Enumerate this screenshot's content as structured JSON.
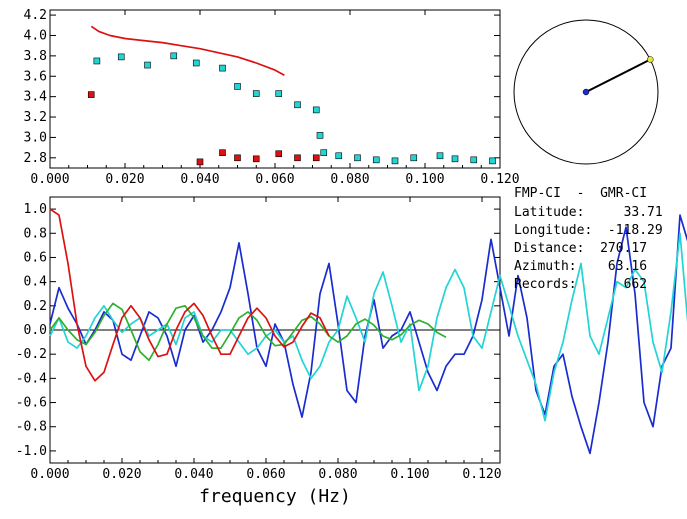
{
  "chart_data": [
    {
      "type": "scatter",
      "panel": "top",
      "xlim": [
        0.0,
        0.12
      ],
      "ylim": [
        2.7,
        4.25
      ],
      "x_ticks": [
        "0.000",
        "0.020",
        "0.040",
        "0.060",
        "0.080",
        "0.100",
        "0.120"
      ],
      "y_ticks": [
        "2.8",
        "3.0",
        "3.2",
        "3.4",
        "3.6",
        "3.8",
        "4.0",
        "4.2"
      ],
      "grid": false,
      "series": [
        {
          "color": "#dd1111",
          "kind": "line",
          "points": [
            [
              0.011,
              4.09
            ],
            [
              0.013,
              4.04
            ],
            [
              0.016,
              4.0
            ],
            [
              0.02,
              3.97
            ],
            [
              0.025,
              3.95
            ],
            [
              0.03,
              3.93
            ],
            [
              0.035,
              3.9
            ],
            [
              0.04,
              3.87
            ],
            [
              0.045,
              3.83
            ],
            [
              0.05,
              3.79
            ],
            [
              0.055,
              3.73
            ],
            [
              0.06,
              3.66
            ],
            [
              0.0625,
              3.61
            ]
          ]
        },
        {
          "color": "#22d4d4",
          "kind": "markers",
          "points": [
            [
              0.0125,
              3.75
            ],
            [
              0.019,
              3.79
            ],
            [
              0.026,
              3.71
            ],
            [
              0.033,
              3.8
            ],
            [
              0.039,
              3.73
            ],
            [
              0.046,
              3.68
            ],
            [
              0.05,
              3.5
            ],
            [
              0.055,
              3.43
            ],
            [
              0.061,
              3.43
            ],
            [
              0.066,
              3.32
            ],
            [
              0.071,
              3.27
            ],
            [
              0.072,
              3.02
            ],
            [
              0.073,
              2.85
            ],
            [
              0.077,
              2.82
            ],
            [
              0.082,
              2.8
            ],
            [
              0.087,
              2.78
            ],
            [
              0.092,
              2.77
            ],
            [
              0.097,
              2.8
            ],
            [
              0.104,
              2.82
            ],
            [
              0.108,
              2.79
            ],
            [
              0.113,
              2.78
            ],
            [
              0.118,
              2.77
            ]
          ]
        },
        {
          "color": "#dd1111",
          "kind": "markers",
          "points": [
            [
              0.011,
              3.42
            ],
            [
              0.04,
              2.76
            ],
            [
              0.046,
              2.85
            ],
            [
              0.05,
              2.8
            ],
            [
              0.055,
              2.79
            ],
            [
              0.061,
              2.84
            ],
            [
              0.066,
              2.8
            ],
            [
              0.071,
              2.8
            ]
          ]
        }
      ]
    },
    {
      "type": "line",
      "panel": "bottom",
      "xlim": [
        0.0,
        0.125
      ],
      "ylim": [
        -1.1,
        1.1
      ],
      "xlabel": "frequency (Hz)",
      "x_ticks": [
        "0.000",
        "0.020",
        "0.040",
        "0.060",
        "0.080",
        "0.100",
        "0.120"
      ],
      "y_ticks": [
        "1.0",
        "0.8",
        "0.6",
        "0.4",
        "0.2",
        "0.0",
        "-0.2",
        "-0.4",
        "-0.6",
        "-0.8",
        "-1.0"
      ],
      "grid": false,
      "zero_line": true,
      "series": [
        {
          "color": "#1a2ccf",
          "step": 0.0025,
          "values": [
            0.05,
            0.35,
            0.18,
            0.05,
            -0.12,
            0.0,
            0.15,
            0.08,
            -0.2,
            -0.25,
            -0.05,
            0.15,
            0.1,
            -0.05,
            -0.3,
            0.0,
            0.12,
            -0.1,
            0.0,
            0.15,
            0.35,
            0.72,
            0.3,
            -0.15,
            -0.3,
            0.05,
            -0.1,
            -0.45,
            -0.72,
            -0.35,
            0.3,
            0.55,
            0.05,
            -0.5,
            -0.6,
            -0.05,
            0.25,
            -0.15,
            -0.05,
            0.0,
            0.15,
            -0.1,
            -0.35,
            -0.5,
            -0.3,
            -0.2,
            -0.2,
            -0.05,
            0.25,
            0.75,
            0.35,
            -0.05,
            0.45,
            0.1,
            -0.5,
            -0.7,
            -0.3,
            -0.2,
            -0.55,
            -0.8,
            -1.02,
            -0.6,
            -0.1,
            0.55,
            0.85,
            0.3,
            -0.6,
            -0.8,
            -0.3,
            -0.15,
            0.95,
            0.7,
            0.15,
            -0.65,
            -0.95,
            -0.5,
            -0.05,
            0.35,
            0.55,
            0.6
          ]
        },
        {
          "color": "#22d4d4",
          "step": 0.0025,
          "values": [
            -0.05,
            0.1,
            -0.1,
            -0.15,
            -0.05,
            0.1,
            0.2,
            0.08,
            -0.02,
            0.05,
            0.1,
            -0.05,
            0.0,
            0.05,
            -0.12,
            0.1,
            0.15,
            -0.05,
            -0.1,
            0.0,
            0.0,
            -0.1,
            -0.2,
            -0.15,
            -0.05,
            0.0,
            -0.1,
            -0.05,
            -0.25,
            -0.4,
            -0.3,
            -0.1,
            0.0,
            0.28,
            0.1,
            -0.1,
            0.3,
            0.48,
            0.2,
            -0.1,
            0.05,
            -0.5,
            -0.3,
            0.1,
            0.35,
            0.5,
            0.35,
            -0.05,
            -0.15,
            0.15,
            0.45,
            0.2,
            -0.05,
            -0.25,
            -0.45,
            -0.75,
            -0.35,
            -0.1,
            0.25,
            0.55,
            -0.05,
            -0.2,
            0.1,
            0.4,
            0.35,
            0.5,
            0.4,
            -0.1,
            -0.35,
            0.15,
            0.8,
            -0.05
          ]
        },
        {
          "color": "#2fb02f",
          "step": 0.0025,
          "values": [
            0.0,
            0.1,
            0.0,
            -0.08,
            -0.12,
            -0.02,
            0.12,
            0.22,
            0.17,
            0.0,
            -0.18,
            -0.25,
            -0.12,
            0.05,
            0.18,
            0.2,
            0.1,
            -0.05,
            -0.15,
            -0.15,
            -0.03,
            0.1,
            0.15,
            0.08,
            -0.05,
            -0.13,
            -0.12,
            -0.02,
            0.08,
            0.11,
            0.05,
            -0.05,
            -0.1,
            -0.05,
            0.05,
            0.09,
            0.04,
            -0.05,
            -0.08,
            -0.04,
            0.04,
            0.08,
            0.05,
            -0.02,
            -0.06
          ]
        },
        {
          "color": "#dd1111",
          "step": 0.0025,
          "values": [
            1.0,
            0.95,
            0.55,
            0.05,
            -0.3,
            -0.42,
            -0.35,
            -0.12,
            0.1,
            0.2,
            0.1,
            -0.08,
            -0.22,
            -0.2,
            0.0,
            0.15,
            0.22,
            0.12,
            -0.05,
            -0.2,
            -0.2,
            -0.05,
            0.1,
            0.18,
            0.1,
            -0.05,
            -0.14,
            -0.1,
            0.03,
            0.14,
            0.1,
            -0.05
          ]
        }
      ]
    }
  ],
  "info": {
    "lines": [
      "FMP-CI  -  GMR-CI",
      "Latitude:     33.71",
      "Longitude:  -118.29",
      "Distance:  270.17",
      "Azimuth:    63.16",
      "Records:      662"
    ]
  },
  "compass": {
    "azimuth_deg": 63.16,
    "circle_color": "#000000",
    "line_color": "#000000",
    "center_color": "#1a2ccf",
    "tip_color": "#e6e63a"
  }
}
